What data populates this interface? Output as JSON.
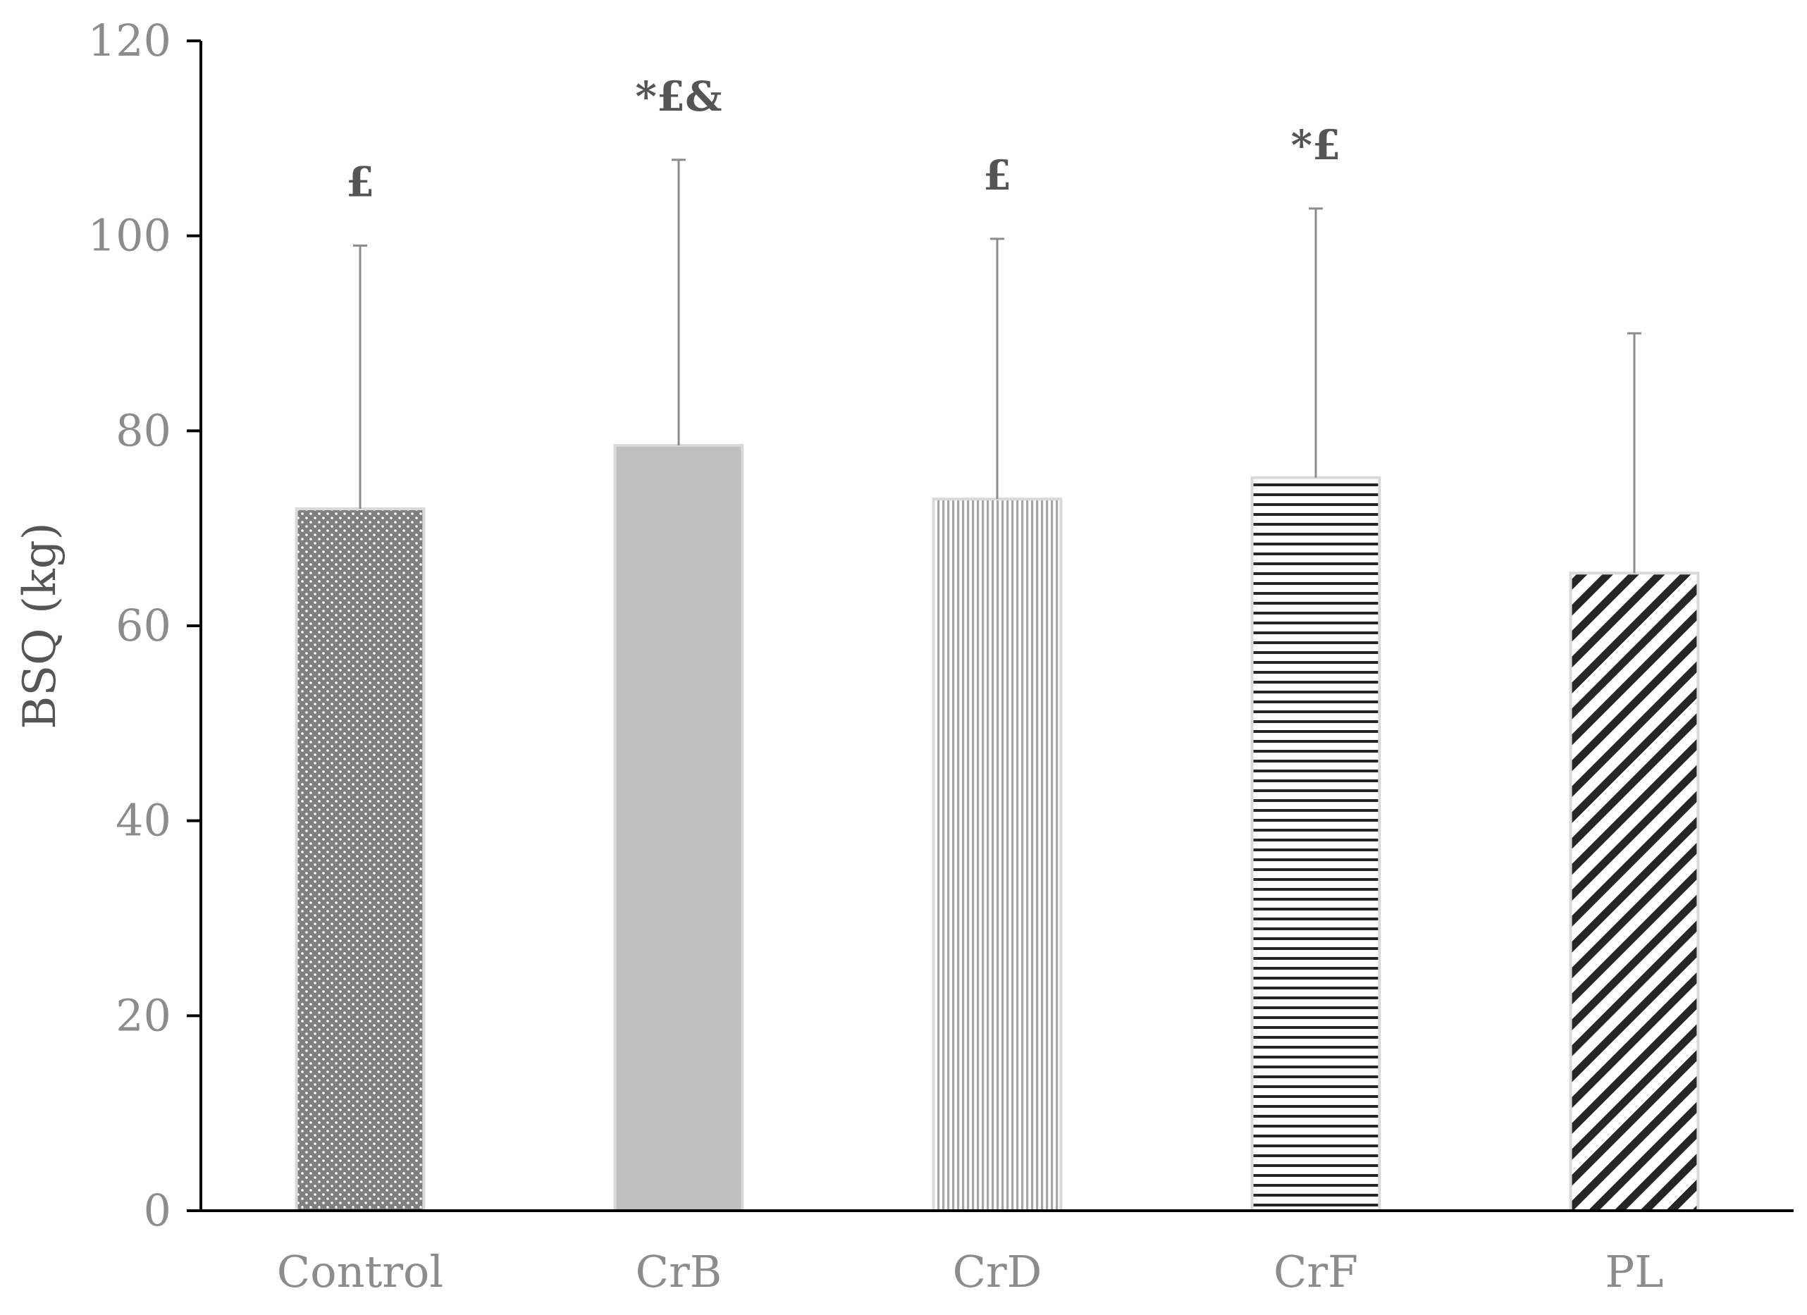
{
  "chart_data": {
    "type": "bar",
    "title": "",
    "xlabel": "",
    "ylabel": "BSQ (kg)",
    "ylim": [
      0,
      120
    ],
    "yticks": [
      0,
      20,
      40,
      60,
      80,
      100,
      120
    ],
    "grid": false,
    "legend": "none",
    "categories": [
      "Control",
      "CrB",
      "CrD",
      "CrF",
      "PL"
    ],
    "values": [
      72,
      78.5,
      73,
      75.2,
      65.4
    ],
    "error_upper": [
      99,
      107.8,
      99.7,
      102.8,
      90
    ],
    "annotations": [
      "£",
      "*£&",
      "£",
      "*£",
      ""
    ],
    "patterns": [
      "dots-on-dark-gray",
      "solid-light-gray",
      "vertical-lines",
      "horizontal-lines",
      "diagonal-lines"
    ],
    "colors": {
      "axis": "#000000",
      "tick_text": "#8c8c8c",
      "error_bar": "#8c8c8c",
      "bar_border": "#d9d9d9",
      "control_fill": "#7f7f7f",
      "crb_fill": "#bfbfbf",
      "crd_line": "#a6a6a6",
      "crf_line": "#262626",
      "pl_line": "#262626"
    }
  }
}
